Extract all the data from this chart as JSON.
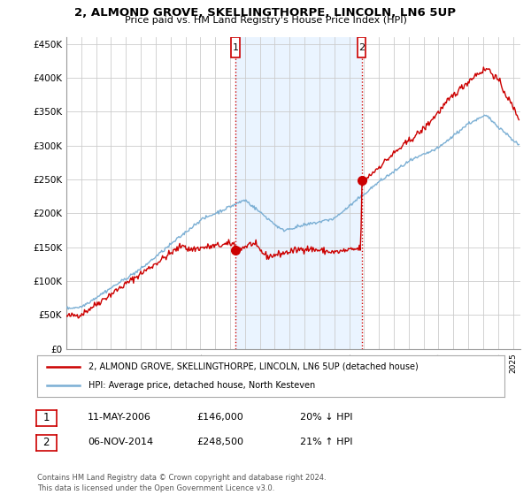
{
  "title": "2, ALMOND GROVE, SKELLINGTHORPE, LINCOLN, LN6 5UP",
  "subtitle": "Price paid vs. HM Land Registry's House Price Index (HPI)",
  "ylabel_ticks": [
    "£0",
    "£50K",
    "£100K",
    "£150K",
    "£200K",
    "£250K",
    "£300K",
    "£350K",
    "£400K",
    "£450K"
  ],
  "ytick_values": [
    0,
    50000,
    100000,
    150000,
    200000,
    250000,
    300000,
    350000,
    400000,
    450000
  ],
  "ylim": [
    0,
    460000
  ],
  "xlim_start": 1995.0,
  "xlim_end": 2025.5,
  "sale1_date": 2006.36,
  "sale1_price": 146000,
  "sale1_label": "1",
  "sale1_text": "11-MAY-2006",
  "sale1_amount": "£146,000",
  "sale1_hpi": "20% ↓ HPI",
  "sale2_date": 2014.84,
  "sale2_price": 248500,
  "sale2_label": "2",
  "sale2_text": "06-NOV-2014",
  "sale2_amount": "£248,500",
  "sale2_hpi": "21% ↑ HPI",
  "line1_color": "#cc0000",
  "line2_color": "#7bafd4",
  "vline_color": "#cc0000",
  "dot_color": "#cc0000",
  "shade_color": "#ddeeff",
  "legend1_label": "2, ALMOND GROVE, SKELLINGTHORPE, LINCOLN, LN6 5UP (detached house)",
  "legend2_label": "HPI: Average price, detached house, North Kesteven",
  "footer": "Contains HM Land Registry data © Crown copyright and database right 2024.\nThis data is licensed under the Open Government Licence v3.0.",
  "background_color": "#ffffff",
  "grid_color": "#cccccc",
  "box_edge_color": "#cc0000"
}
